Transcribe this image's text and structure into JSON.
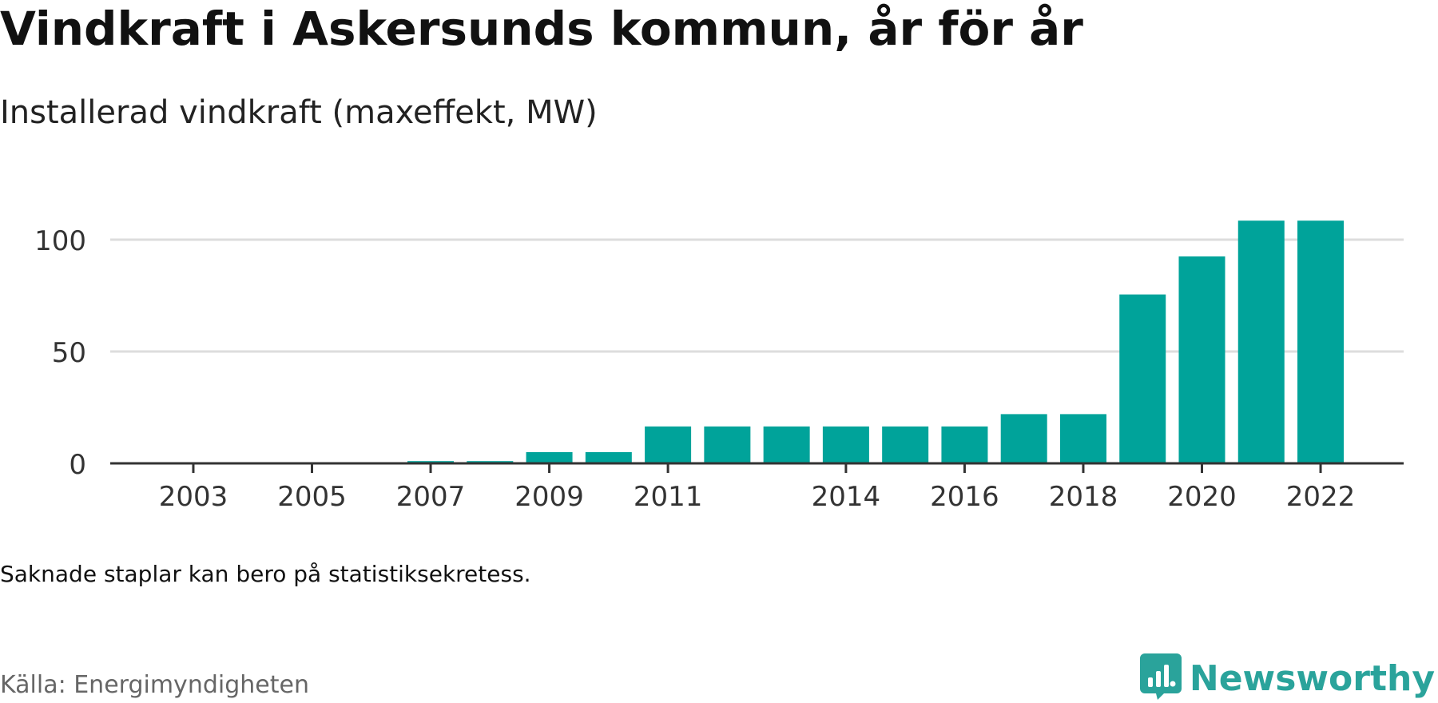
{
  "title": "Vindkraft i Askersunds kommun, år för år",
  "subtitle": "Installerad vindkraft (maxeffekt, MW)",
  "footnote": "Saknade staplar kan bero på statistiksekretess.",
  "source": "Källa: Energimyndigheten",
  "brand": {
    "name": "Newsworthy",
    "icon": "newsworthy-logo-icon",
    "color": "#2aa39b"
  },
  "chart_data": {
    "type": "bar",
    "x": [
      2003,
      2004,
      2005,
      2006,
      2007,
      2008,
      2009,
      2010,
      2011,
      2012,
      2013,
      2014,
      2015,
      2016,
      2017,
      2018,
      2019,
      2020,
      2021,
      2022
    ],
    "values": [
      0,
      0,
      0,
      0,
      1,
      1,
      5,
      5,
      16.5,
      16.5,
      16.5,
      16.5,
      16.5,
      16.5,
      22,
      22,
      75.5,
      92.5,
      108.5,
      108.5
    ],
    "xticks": [
      "2003",
      "2005",
      "2007",
      "2009",
      "2011",
      "2014",
      "2016",
      "2018",
      "2020",
      "2022"
    ],
    "yticks": [
      "0",
      "50",
      "100"
    ],
    "ylim": [
      0,
      110
    ],
    "xlim": [
      2001.6,
      2023.4
    ],
    "grid": true,
    "bar_color": "#00a39a",
    "grid_color": "#dddddd",
    "axis_color": "#333333"
  }
}
